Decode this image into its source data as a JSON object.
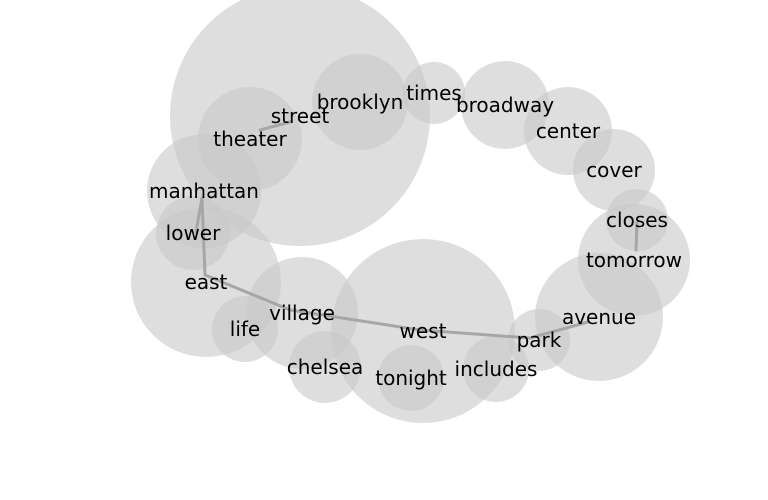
{
  "words": [
    {
      "id": "street",
      "label": "street",
      "weight": 130
    },
    {
      "id": "brooklyn",
      "label": "brooklyn",
      "weight": 48
    },
    {
      "id": "times",
      "label": "times",
      "weight": 31
    },
    {
      "id": "broadway",
      "label": "broadway",
      "weight": 44
    },
    {
      "id": "center",
      "label": "center",
      "weight": 44
    },
    {
      "id": "theater",
      "label": "theater",
      "weight": 52
    },
    {
      "id": "cover",
      "label": "cover",
      "weight": 41
    },
    {
      "id": "manhattan",
      "label": "manhattan",
      "weight": 57
    },
    {
      "id": "closes",
      "label": "closes",
      "weight": 31
    },
    {
      "id": "lower",
      "label": "lower",
      "weight": 37
    },
    {
      "id": "tomorrow",
      "label": "tomorrow",
      "weight": 56
    },
    {
      "id": "east",
      "label": "east",
      "weight": 75
    },
    {
      "id": "avenue",
      "label": "avenue",
      "weight": 64
    },
    {
      "id": "village",
      "label": "village",
      "weight": 56
    },
    {
      "id": "west",
      "label": "west",
      "weight": 92
    },
    {
      "id": "life",
      "label": "life",
      "weight": 33
    },
    {
      "id": "park",
      "label": "park",
      "weight": 31
    },
    {
      "id": "chelsea",
      "label": "chelsea",
      "weight": 36
    },
    {
      "id": "includes",
      "label": "includes",
      "weight": 33
    },
    {
      "id": "tonight",
      "label": "tonight",
      "weight": 33
    }
  ],
  "links": [
    [
      "theater",
      "street"
    ],
    [
      "manhattan",
      "lower"
    ],
    [
      "manhattan",
      "east"
    ],
    [
      "east",
      "village"
    ],
    [
      "village",
      "west"
    ],
    [
      "west",
      "park"
    ],
    [
      "park",
      "avenue"
    ],
    [
      "closes",
      "tomorrow"
    ]
  ],
  "colors": {
    "bubble": "#c8c8c8",
    "edge": "#a6a6a6",
    "text": "#000000"
  }
}
